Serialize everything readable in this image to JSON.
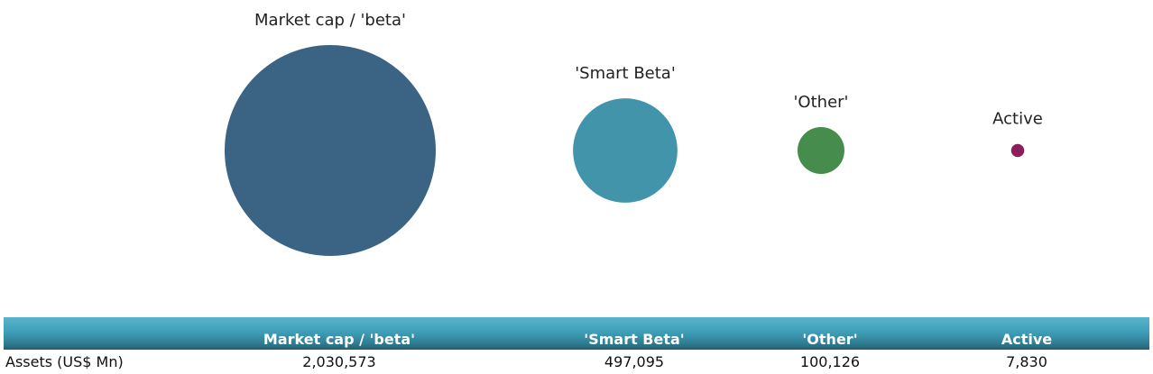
{
  "chart_data": {
    "type": "bubble",
    "categories": [
      "Market cap / 'beta'",
      "'Smart Beta'",
      "'Other'",
      "Active"
    ],
    "values": [
      2030573,
      497095,
      100126,
      7830
    ],
    "colors": [
      "#3b6384",
      "#4294aa",
      "#458c4d",
      "#8a1f5c"
    ],
    "table": {
      "row_label": "Assets (US$ Mn)",
      "headers": [
        "Market cap / 'beta'",
        "'Smart Beta'",
        "'Other'",
        "Active"
      ],
      "cells": [
        "2,030,573",
        "497,095",
        "100,126",
        "7,830"
      ]
    }
  }
}
